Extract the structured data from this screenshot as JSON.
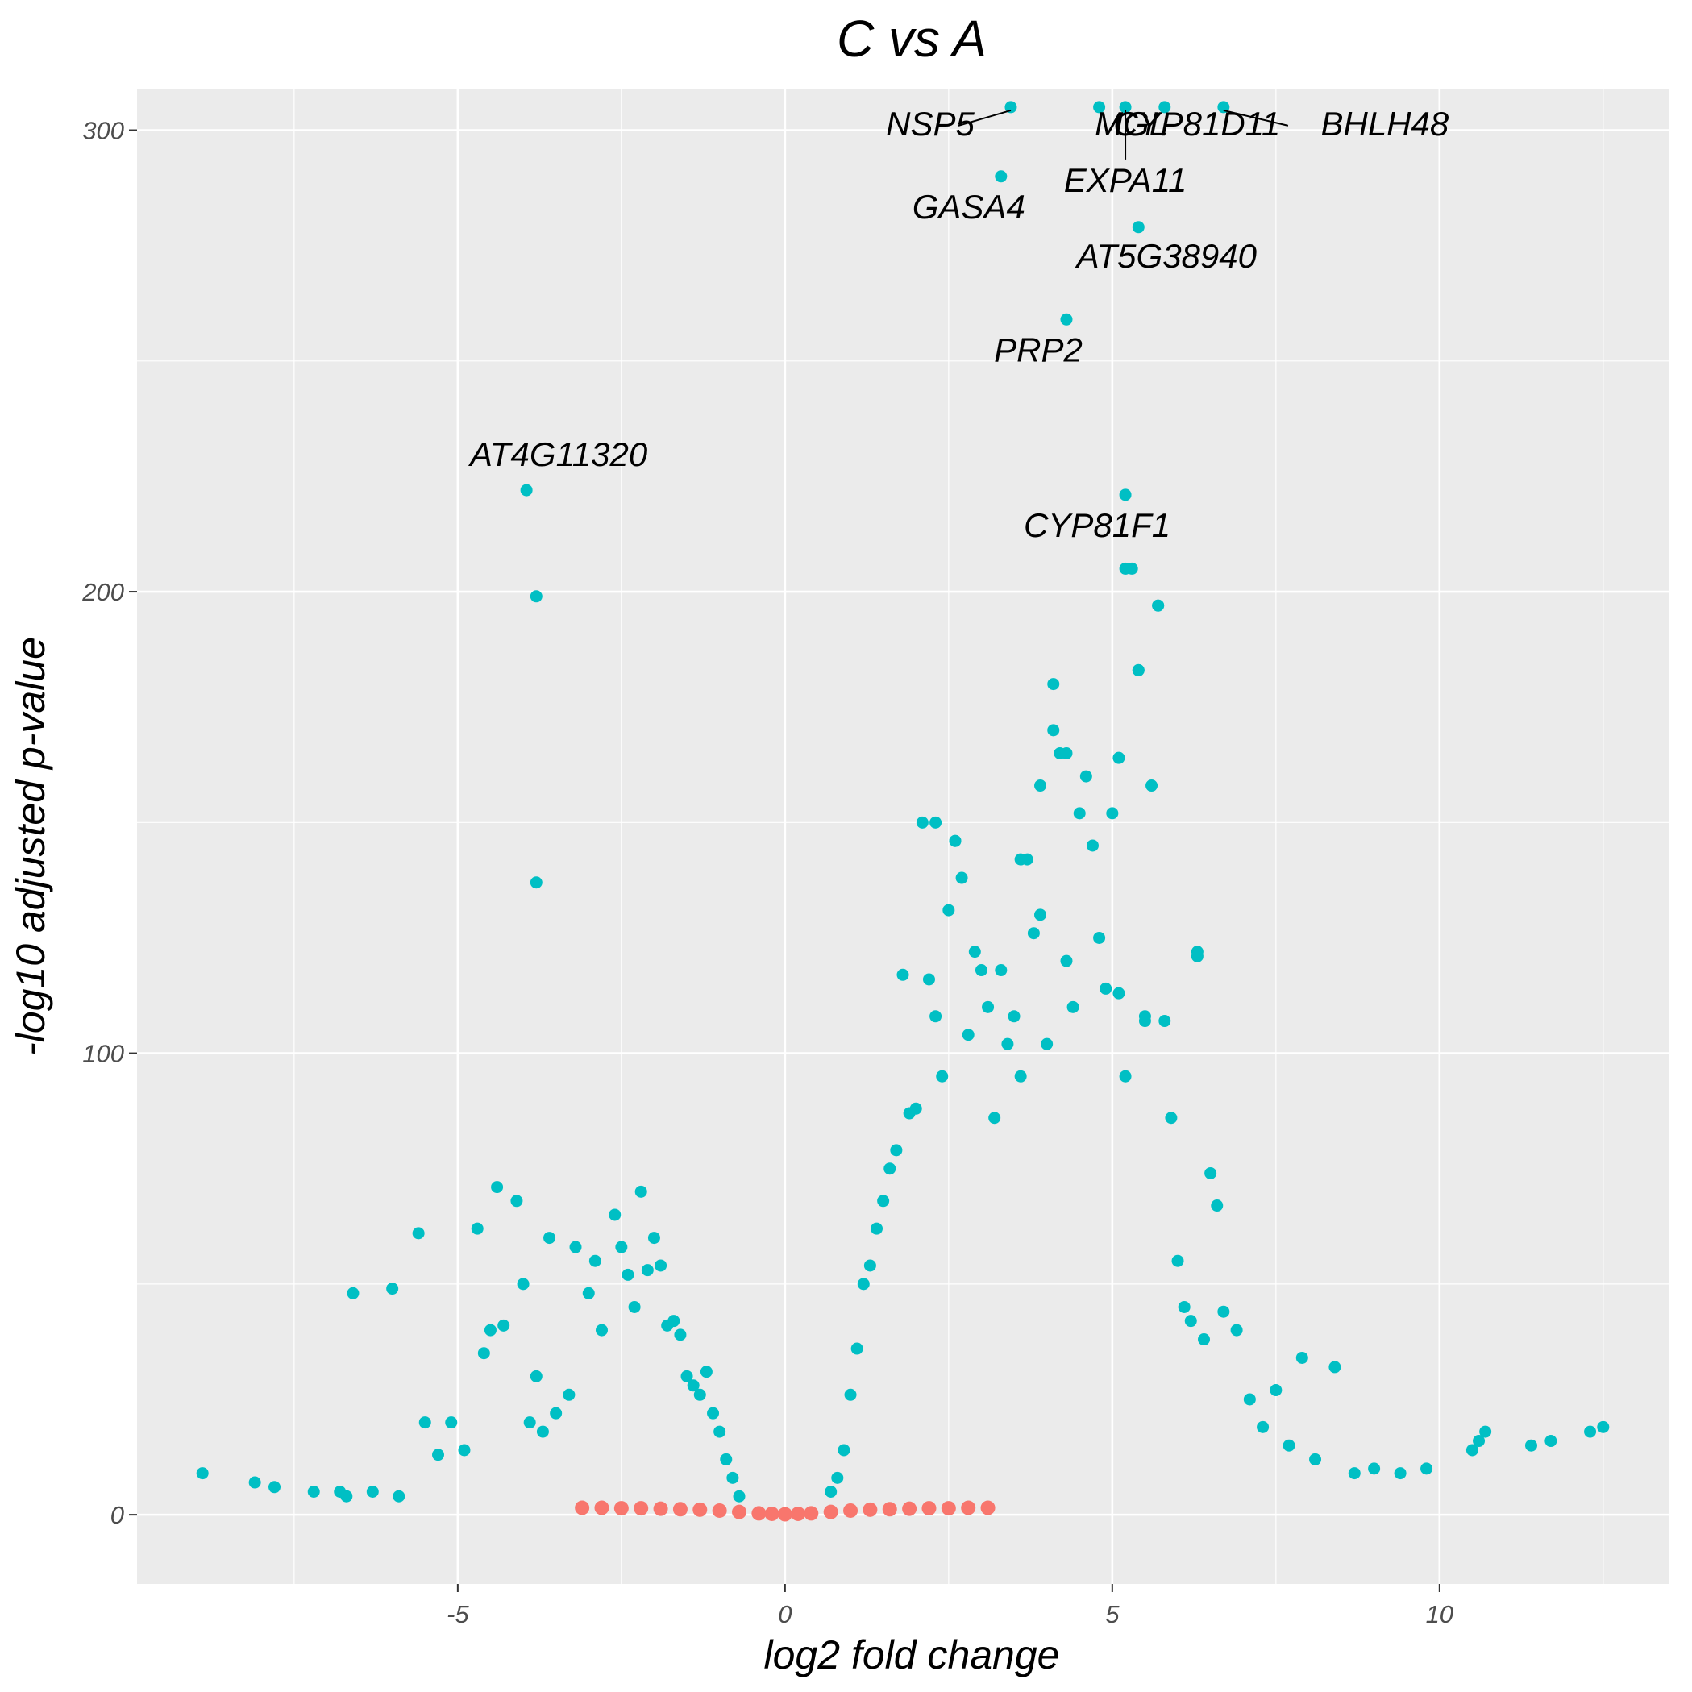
{
  "chart_data": {
    "type": "scatter",
    "title": "C vs A",
    "xlabel": "log2 fold change",
    "ylabel": "-log10 adjusted p-value",
    "xlim": [
      -9.9,
      13.5
    ],
    "ylim": [
      -15,
      309
    ],
    "x_ticks": [
      -5,
      0,
      5,
      10
    ],
    "y_ticks": [
      0,
      100,
      200,
      300
    ],
    "grid": true,
    "legend": "none",
    "colors": {
      "significant": "#00BFC4",
      "not_significant": "#F8766D",
      "panel": "#EBEBEB",
      "grid": "#FFFFFF"
    },
    "series": [
      {
        "group": "significant",
        "x": [
          -8.9,
          -8.1,
          -7.8,
          -7.2,
          -6.8,
          -6.7,
          -6.6,
          -6.3,
          -6.0,
          -5.9,
          -5.6,
          -5.5,
          -5.3,
          -5.1,
          -4.9,
          -4.7,
          -4.6,
          -4.5,
          -4.4,
          -4.3,
          -4.1,
          -4.0,
          -3.9,
          -3.8,
          -3.7,
          -3.6,
          -3.5,
          -3.3,
          -3.2,
          -3.0,
          -2.9,
          -2.8,
          -2.6,
          -2.5,
          -2.4,
          -2.3,
          -2.2,
          -2.1,
          -2.0,
          -1.9,
          -1.8,
          -1.7,
          -1.6,
          -1.5,
          -1.4,
          -1.3,
          -1.2,
          -1.1,
          -1.0,
          -0.9,
          -0.8,
          -0.7,
          0.7,
          0.8,
          0.9,
          1.0,
          1.1,
          1.2,
          1.3,
          1.4,
          1.5,
          1.6,
          1.7,
          1.8,
          1.9,
          2.0,
          2.1,
          2.2,
          2.3,
          2.4,
          2.5,
          2.6,
          2.7,
          2.8,
          2.9,
          3.0,
          3.1,
          3.2,
          3.3,
          3.4,
          3.5,
          3.6,
          3.7,
          3.8,
          3.9,
          4.0,
          4.1,
          4.2,
          4.3,
          4.4,
          4.5,
          4.6,
          4.7,
          4.8,
          4.9,
          5.0,
          5.1,
          5.2,
          5.3,
          5.4,
          5.5,
          5.6,
          5.7,
          5.8,
          5.9,
          6.0,
          6.1,
          6.2,
          6.3,
          6.4,
          6.5,
          6.6,
          6.7,
          6.9,
          7.1,
          7.3,
          7.5,
          7.7,
          7.9,
          8.1,
          8.4,
          8.7,
          9.0,
          9.4,
          9.8,
          10.5,
          10.6,
          10.7,
          11.4,
          11.7,
          12.3,
          12.5,
          -3.95,
          -3.8,
          -3.8,
          3.3,
          3.45,
          4.8,
          5.2,
          5.8,
          6.7,
          5.4,
          4.3,
          5.2,
          5.2,
          5.7,
          5.4,
          4.1,
          4.3,
          5.1,
          3.9,
          2.3,
          2.6,
          3.6,
          6.3,
          5.5
        ],
        "y": [
          9,
          7,
          6,
          5,
          5,
          4,
          48,
          5,
          49,
          4,
          61,
          20,
          13,
          20,
          14,
          62,
          35,
          40,
          71,
          41,
          68,
          50,
          20,
          30,
          18,
          60,
          22,
          26,
          58,
          48,
          55,
          40,
          65,
          58,
          52,
          45,
          70,
          53,
          60,
          54,
          41,
          42,
          39,
          30,
          28,
          26,
          31,
          22,
          18,
          12,
          8,
          4,
          5,
          8,
          14,
          26,
          36,
          50,
          54,
          62,
          68,
          75,
          79,
          117,
          87,
          88,
          150,
          116,
          108,
          95,
          131,
          146,
          138,
          104,
          122,
          118,
          110,
          86,
          118,
          102,
          108,
          95,
          142,
          126,
          130,
          102,
          170,
          165,
          120,
          110,
          152,
          160,
          145,
          125,
          114,
          152,
          113,
          95,
          205,
          183,
          108,
          158,
          197,
          107,
          86,
          55,
          45,
          42,
          121,
          38,
          74,
          67,
          44,
          40,
          25,
          19,
          27,
          15,
          34,
          12,
          32,
          9,
          10,
          9,
          10,
          14,
          16,
          18,
          15,
          16,
          18,
          19,
          222,
          199,
          137,
          290,
          305,
          305,
          305,
          305,
          305,
          279,
          259,
          221,
          205,
          197,
          183,
          180,
          165,
          164,
          158,
          150,
          146,
          142,
          122,
          107
        ]
      },
      {
        "group": "not_significant",
        "x": [
          -3.1,
          -2.8,
          -2.5,
          -2.2,
          -1.9,
          -1.6,
          -1.3,
          -1.0,
          -0.7,
          -0.4,
          -0.2,
          0.0,
          0.2,
          0.4,
          0.7,
          1.0,
          1.3,
          1.6,
          1.9,
          2.2,
          2.5,
          2.8,
          3.1
        ],
        "y": [
          1.5,
          1.5,
          1.4,
          1.4,
          1.3,
          1.2,
          1.1,
          0.9,
          0.6,
          0.3,
          0.2,
          0.1,
          0.2,
          0.3,
          0.6,
          0.9,
          1.1,
          1.2,
          1.3,
          1.4,
          1.4,
          1.5,
          1.5
        ]
      }
    ],
    "annotations": [
      {
        "label": "AT4G11320",
        "x": -3.95,
        "y": 222
      },
      {
        "label": "NSP5",
        "x": 3.45,
        "y": 305
      },
      {
        "label": "MGL",
        "x": 4.8,
        "y": 305
      },
      {
        "label": "CYP81D11",
        "x": 5.8,
        "y": 305
      },
      {
        "label": "BHLH48",
        "x": 6.7,
        "y": 305
      },
      {
        "label": "EXPA11",
        "x": 5.2,
        "y": 305
      },
      {
        "label": "GASA4",
        "x": 3.3,
        "y": 290
      },
      {
        "label": "AT5G38940",
        "x": 5.4,
        "y": 279
      },
      {
        "label": "PRP2",
        "x": 4.3,
        "y": 259
      },
      {
        "label": "CYP81F1",
        "x": 5.2,
        "y": 221
      }
    ]
  }
}
